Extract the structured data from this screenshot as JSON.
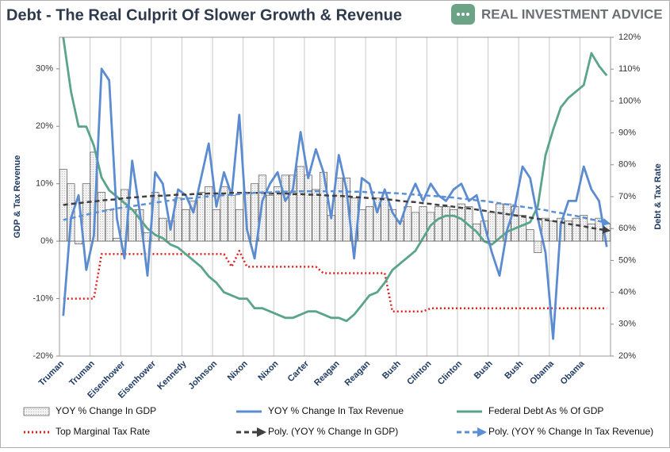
{
  "chart_data": {
    "type": "combo",
    "title": "Debt - The Real Culprit Of Slower Growth & Revenue",
    "logo": "REAL INVESTMENT ADVICE",
    "y_label": "GDP & Tax Revenue",
    "y2_label": "Debt & Tax Rate",
    "categories": [
      "Truman",
      null,
      null,
      null,
      "Truman",
      null,
      null,
      null,
      "Eisenhower",
      null,
      null,
      null,
      "Eisenhower",
      null,
      null,
      null,
      "Kennedy",
      null,
      null,
      null,
      "Johnson",
      null,
      null,
      null,
      "Nixon",
      null,
      null,
      null,
      "Nixon",
      null,
      null,
      null,
      "Carter",
      null,
      null,
      null,
      "Reagan",
      null,
      null,
      null,
      "Reagan",
      null,
      null,
      null,
      "Bush",
      null,
      null,
      null,
      "Clinton",
      null,
      null,
      null,
      "Clinton",
      null,
      null,
      null,
      "Bush",
      null,
      null,
      null,
      "Bush",
      null,
      null,
      null,
      "Obama",
      null,
      null,
      null,
      "Obama",
      null,
      null,
      null
    ],
    "ylim": [
      -20,
      35.5
    ],
    "yticks": [
      {
        "value": -20,
        "label": "-20%"
      },
      {
        "value": -10,
        "label": "-10%"
      },
      {
        "value": 0,
        "label": "0%"
      },
      {
        "value": 10,
        "label": "10%"
      },
      {
        "value": 20,
        "label": "20%"
      },
      {
        "value": 30,
        "label": "30%"
      }
    ],
    "y2lim": [
      20,
      120
    ],
    "y2ticks": [
      {
        "value": 20,
        "label": "20%"
      },
      {
        "value": 30,
        "label": "30%"
      },
      {
        "value": 40,
        "label": "40%"
      },
      {
        "value": 50,
        "label": "50%"
      },
      {
        "value": 60,
        "label": "60%"
      },
      {
        "value": 70,
        "label": "70%"
      },
      {
        "value": 80,
        "label": "80%"
      },
      {
        "value": 90,
        "label": "90%"
      },
      {
        "value": 100,
        "label": "100%"
      },
      {
        "value": 110,
        "label": "110%"
      },
      {
        "value": 120,
        "label": "120%"
      }
    ],
    "xgrid": true,
    "legend": "bottom",
    "series": [
      {
        "name": "YOY % Change In GDP",
        "type": "bar",
        "axis": "y",
        "color": "#e6e6e6",
        "values": [
          12.5,
          10,
          -0.5,
          10,
          15.5,
          8.5,
          5.5,
          0.5,
          9,
          5.5,
          5.5,
          1.5,
          8.5,
          4,
          3.5,
          7.5,
          5.5,
          7,
          8.5,
          9.5,
          5.5,
          9.5,
          8,
          5.5,
          8.5,
          10,
          11.5,
          8,
          9.5,
          11.5,
          11.5,
          13,
          11.5,
          9,
          12,
          4.5,
          11,
          11,
          7.5,
          5.5,
          6,
          7.5,
          7.5,
          5.5,
          3.5,
          6,
          5,
          6,
          5,
          6,
          6,
          5.5,
          6.5,
          6,
          3,
          3.5,
          5,
          6.5,
          6.5,
          6,
          4.5,
          2,
          -2,
          4,
          3.5,
          4,
          3.5,
          4,
          4.5,
          3,
          4,
          3
        ]
      },
      {
        "name": "YOY % Change In Tax Revenue",
        "type": "line",
        "axis": "y",
        "color": "#5b8bd0",
        "values": [
          -13,
          4,
          8,
          -5,
          1,
          30,
          28,
          4,
          -3,
          14,
          5,
          -6,
          12,
          10,
          2,
          9,
          8,
          5,
          11,
          17,
          6,
          12,
          8,
          22,
          2,
          -3,
          7,
          10,
          12,
          7,
          9,
          19,
          11,
          16,
          12,
          4,
          15,
          9,
          -3,
          11,
          10,
          5,
          9,
          5,
          3,
          7,
          10,
          7,
          10,
          8,
          7,
          9,
          10,
          7,
          8,
          3,
          -2,
          -6,
          2,
          6,
          13,
          11,
          4,
          -2,
          -17,
          3,
          7,
          7,
          13,
          9,
          7,
          -1
        ]
      },
      {
        "name": "Federal Debt As % Of GDP",
        "type": "line",
        "axis": "y2",
        "color": "#5aa58a",
        "values": [
          120,
          103,
          92,
          92,
          86,
          76,
          72,
          70,
          68,
          66,
          63,
          60,
          58,
          57,
          55,
          54,
          52,
          50,
          48,
          45,
          43,
          40,
          39,
          38,
          38,
          35,
          35,
          34,
          33,
          32,
          32,
          33,
          34,
          34,
          33,
          32,
          32,
          31,
          33,
          36,
          39,
          40,
          43,
          47,
          49,
          51,
          53,
          57,
          61,
          63,
          64,
          64,
          63,
          61,
          59,
          56,
          55,
          57,
          59,
          60,
          61,
          62,
          67,
          83,
          91,
          98,
          101,
          103,
          105,
          115,
          111,
          108
        ]
      },
      {
        "name": "Top Marginal Tax Rate",
        "type": "line",
        "axis": "y2",
        "color": "#e0201f",
        "dash": "dotted",
        "values": [
          38,
          38,
          38,
          38,
          38,
          52,
          52,
          52,
          52,
          52,
          52,
          52,
          52,
          52,
          52,
          52,
          52,
          52,
          52,
          52,
          52,
          52,
          48,
          53,
          48,
          48,
          48,
          48,
          48,
          48,
          48,
          48,
          48,
          48,
          46,
          46,
          46,
          46,
          46,
          46,
          46,
          46,
          46,
          34,
          34,
          34,
          34,
          34,
          35,
          35,
          35,
          35,
          35,
          35,
          35,
          35,
          35,
          35,
          35,
          35,
          35,
          35,
          35,
          35,
          35,
          35,
          35,
          35,
          35,
          35,
          35,
          35
        ]
      },
      {
        "name": "Poly. (YOY % Change In GDP)",
        "type": "line",
        "axis": "y",
        "color": "#404040",
        "dash": "dashed",
        "arrow": true,
        "values": [
          6.3,
          6.5,
          6.6,
          6.8,
          6.9,
          7.1,
          7.2,
          7.3,
          7.5,
          7.6,
          7.7,
          7.8,
          7.9,
          7.9,
          8.0,
          8.1,
          8.1,
          8.2,
          8.2,
          8.3,
          8.3,
          8.3,
          8.4,
          8.4,
          8.4,
          8.4,
          8.4,
          8.3,
          8.3,
          8.3,
          8.2,
          8.2,
          8.1,
          8.1,
          8.0,
          7.9,
          7.9,
          7.8,
          7.7,
          7.6,
          7.5,
          7.4,
          7.3,
          7.2,
          7.0,
          6.9,
          6.8,
          6.6,
          6.5,
          6.3,
          6.2,
          6.0,
          5.8,
          5.7,
          5.5,
          5.3,
          5.1,
          4.9,
          4.7,
          4.5,
          4.3,
          4.1,
          3.9,
          3.7,
          3.5,
          3.3,
          3.0,
          2.8,
          2.6,
          2.3,
          2.1,
          1.9
        ]
      },
      {
        "name": "Poly. (YOY % Change In Tax Revenue)",
        "type": "line",
        "axis": "y",
        "color": "#5b8fd6",
        "dash": "dashed",
        "arrow": true,
        "values": [
          3.7,
          4.0,
          4.3,
          4.6,
          4.9,
          5.2,
          5.4,
          5.7,
          5.9,
          6.1,
          6.3,
          6.5,
          6.7,
          6.9,
          7.1,
          7.2,
          7.4,
          7.5,
          7.7,
          7.8,
          7.9,
          8.0,
          8.1,
          8.2,
          8.3,
          8.4,
          8.5,
          8.5,
          8.6,
          8.6,
          8.6,
          8.7,
          8.7,
          8.7,
          8.7,
          8.7,
          8.7,
          8.6,
          8.6,
          8.6,
          8.5,
          8.5,
          8.4,
          8.4,
          8.3,
          8.2,
          8.1,
          8.0,
          7.9,
          7.8,
          7.7,
          7.6,
          7.4,
          7.3,
          7.1,
          7.0,
          6.8,
          6.6,
          6.4,
          6.2,
          6.0,
          5.8,
          5.6,
          5.4,
          5.1,
          4.9,
          4.6,
          4.4,
          4.1,
          3.8,
          3.5,
          3.2
        ]
      }
    ]
  }
}
